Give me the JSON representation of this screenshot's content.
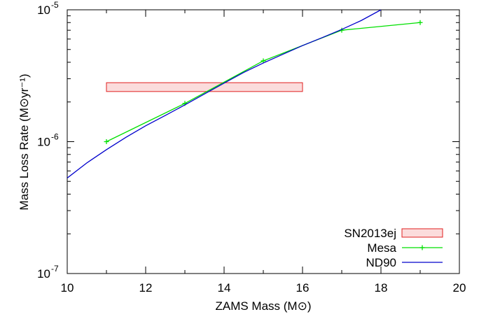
{
  "chart_data": {
    "type": "line",
    "xlabel": "ZAMS Mass (M⊙)",
    "ylabel": "Mass Loss Rate (M⊙yr⁻¹)",
    "xlim": [
      10,
      20
    ],
    "ylim": [
      1e-07,
      1e-05
    ],
    "y_scale": "log",
    "x_ticks": [
      "10",
      "12",
      "14",
      "16",
      "18",
      "20"
    ],
    "y_ticks": [
      {
        "base": "10",
        "exp": "-7",
        "value": 1e-07
      },
      {
        "base": "10",
        "exp": "-6",
        "value": 1e-06
      },
      {
        "base": "10",
        "exp": "-5",
        "value": 1e-05
      }
    ],
    "legend_position": "bottom-right",
    "series": [
      {
        "name": "SN2013ej",
        "kind": "box",
        "x_range": [
          11,
          16
        ],
        "y_range": [
          2.4e-06,
          2.8e-06
        ],
        "color": "#e02020",
        "fill": "#fbdcdc"
      },
      {
        "name": "Mesa",
        "kind": "line-points",
        "x": [
          11,
          13,
          15,
          17,
          19
        ],
        "y": [
          1e-06,
          1.95e-06,
          4.1e-06,
          7e-06,
          8e-06
        ],
        "color": "#00e000"
      },
      {
        "name": "ND90",
        "kind": "curve",
        "x": [
          10,
          10.5,
          11,
          11.5,
          12,
          12.5,
          13,
          13.5,
          14,
          14.5,
          15,
          15.5,
          16,
          16.5,
          17,
          17.5,
          18
        ],
        "y": [
          5.3e-07,
          6.9e-07,
          8.7e-07,
          1.08e-06,
          1.32e-06,
          1.58e-06,
          1.9e-06,
          2.3e-06,
          2.78e-06,
          3.35e-06,
          3.95e-06,
          4.6e-06,
          5.35e-06,
          6.15e-06,
          7.1e-06,
          8.3e-06,
          1e-05
        ],
        "color": "#0000cc"
      }
    ]
  }
}
